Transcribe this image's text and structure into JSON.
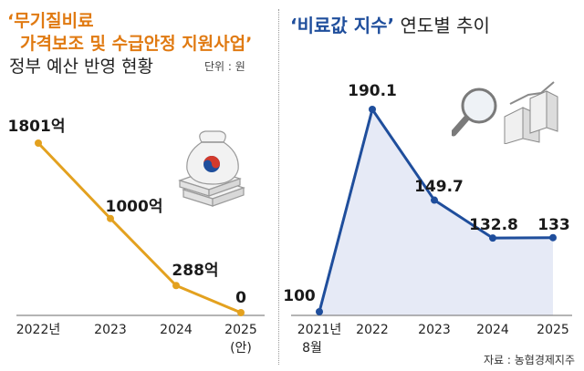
{
  "left": {
    "title_line1": "‘무기질비료",
    "title_line2": "가격보조 및 수급안정 지원사업’",
    "title_line3": "정부 예산 반영 현황",
    "unit": "단위 : 원",
    "chart_data": {
      "type": "line",
      "categories": [
        "2022년",
        "2023",
        "2024",
        "2025"
      ],
      "category_sub": [
        "",
        "",
        "",
        "(안)"
      ],
      "values": [
        1801,
        1000,
        288,
        0
      ],
      "value_labels": [
        "1801억",
        "1000억",
        "288억",
        "0"
      ],
      "ylim": [
        0,
        1801
      ],
      "color": "#e3a11f",
      "grid": false
    }
  },
  "right": {
    "title_highlight": "‘비료값 지수’",
    "title_rest": " 연도별 추이",
    "source": "자료 : 농협경제지주",
    "chart_data": {
      "type": "area",
      "categories": [
        "2021년",
        "2022",
        "2023",
        "2024",
        "2025"
      ],
      "category_sub": [
        "8월",
        "",
        "",
        "",
        ""
      ],
      "values": [
        100,
        190.1,
        149.7,
        132.8,
        133
      ],
      "value_labels": [
        "100",
        "190.1",
        "149.7",
        "132.8",
        "133"
      ],
      "ylim": [
        100,
        190.1
      ],
      "line_color": "#1f4e9c",
      "fill_color": "#e6eaf6",
      "grid": false
    }
  }
}
